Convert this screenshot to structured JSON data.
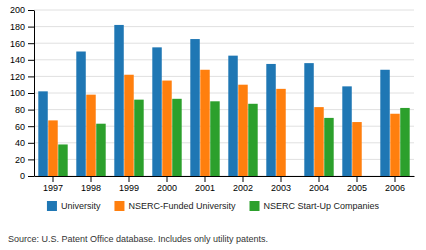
{
  "chart_data": {
    "type": "bar",
    "categories": [
      "1997",
      "1998",
      "1999",
      "2000",
      "2001",
      "2002",
      "2003",
      "2004",
      "2005",
      "2006"
    ],
    "series": [
      {
        "name": "University",
        "values": [
          102,
          150,
          182,
          155,
          165,
          145,
          135,
          136,
          108,
          128
        ]
      },
      {
        "name": "NSERC-Funded University",
        "values": [
          67,
          98,
          122,
          115,
          128,
          110,
          105,
          83,
          65,
          75
        ]
      },
      {
        "name": "NSERC Start-Up Companies",
        "values": [
          38,
          63,
          92,
          93,
          90,
          87,
          0,
          70,
          0,
          82
        ]
      }
    ],
    "ylim": [
      0,
      200
    ],
    "yticks": [
      0,
      20,
      40,
      60,
      80,
      100,
      120,
      140,
      160,
      180,
      200
    ],
    "grid": true,
    "legend": "bottom",
    "annotations": [
      "Source: U.S. Patent Office database. Includes only utility patents."
    ]
  }
}
